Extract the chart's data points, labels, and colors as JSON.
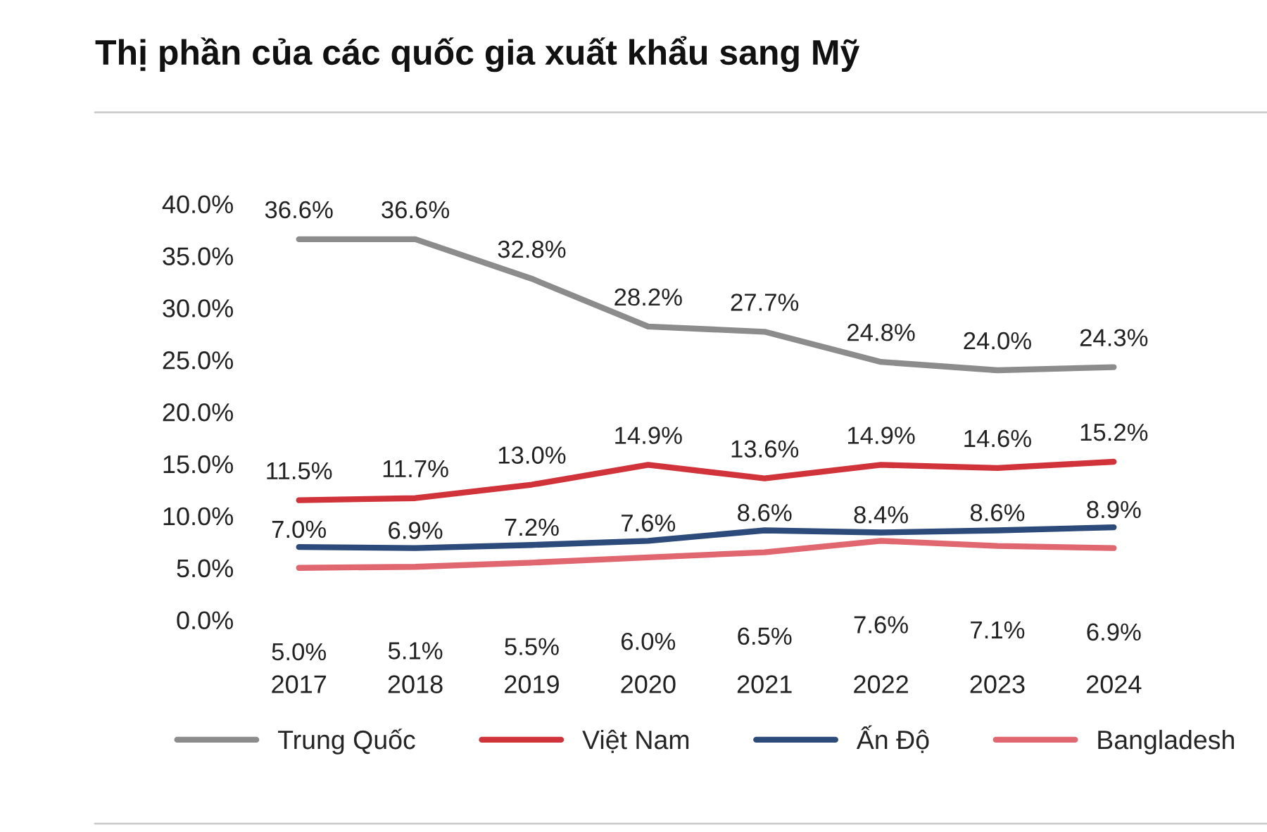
{
  "chart_data": {
    "type": "line",
    "title": "Thị phần của các quốc gia xuất khẩu sang Mỹ",
    "categories": [
      "2017",
      "2018",
      "2019",
      "2020",
      "2021",
      "2022",
      "2023",
      "2024"
    ],
    "series": [
      {
        "name": "Trung Quốc",
        "color": "#8c8c8c",
        "values": [
          36.6,
          36.6,
          32.8,
          28.2,
          27.7,
          24.8,
          24.0,
          24.3
        ],
        "value_labels": [
          "36.6%",
          "36.6%",
          "32.8%",
          "28.2%",
          "27.7%",
          "24.8%",
          "24.0%",
          "24.3%"
        ]
      },
      {
        "name": "Việt Nam",
        "color": "#d0343a",
        "values": [
          11.5,
          11.7,
          13.0,
          14.9,
          13.6,
          14.9,
          14.6,
          15.2
        ],
        "value_labels": [
          "11.5%",
          "11.7%",
          "13.0%",
          "14.9%",
          "13.6%",
          "14.9%",
          "14.6%",
          "15.2%"
        ]
      },
      {
        "name": "Ấn Độ",
        "color": "#2c4a7a",
        "values": [
          7.0,
          6.9,
          7.2,
          7.6,
          8.6,
          8.4,
          8.6,
          8.9
        ],
        "value_labels": [
          "7.0%",
          "6.9%",
          "7.2%",
          "7.6%",
          "8.6%",
          "8.4%",
          "8.6%",
          "8.9%"
        ]
      },
      {
        "name": "Bangladesh",
        "color": "#e06670",
        "values": [
          5.0,
          5.1,
          5.5,
          6.0,
          6.5,
          7.6,
          7.1,
          6.9
        ],
        "value_labels": [
          "5.0%",
          "5.1%",
          "5.5%",
          "6.0%",
          "6.5%",
          "7.6%",
          "7.1%",
          "6.9%"
        ]
      }
    ],
    "ylim": [
      0,
      40
    ],
    "yticks": [
      {
        "value": 0,
        "label": "0.0%"
      },
      {
        "value": 5,
        "label": "5.0%"
      },
      {
        "value": 10,
        "label": "10.0%"
      },
      {
        "value": 15,
        "label": "15.0%"
      },
      {
        "value": 20,
        "label": "20.0%"
      },
      {
        "value": 25,
        "label": "25.0%"
      },
      {
        "value": 30,
        "label": "30.0%"
      },
      {
        "value": 35,
        "label": "35.0%"
      },
      {
        "value": 40,
        "label": "40.0%"
      }
    ],
    "legend": "bottom",
    "grid": false,
    "marker": "none",
    "line_style": "solid"
  }
}
